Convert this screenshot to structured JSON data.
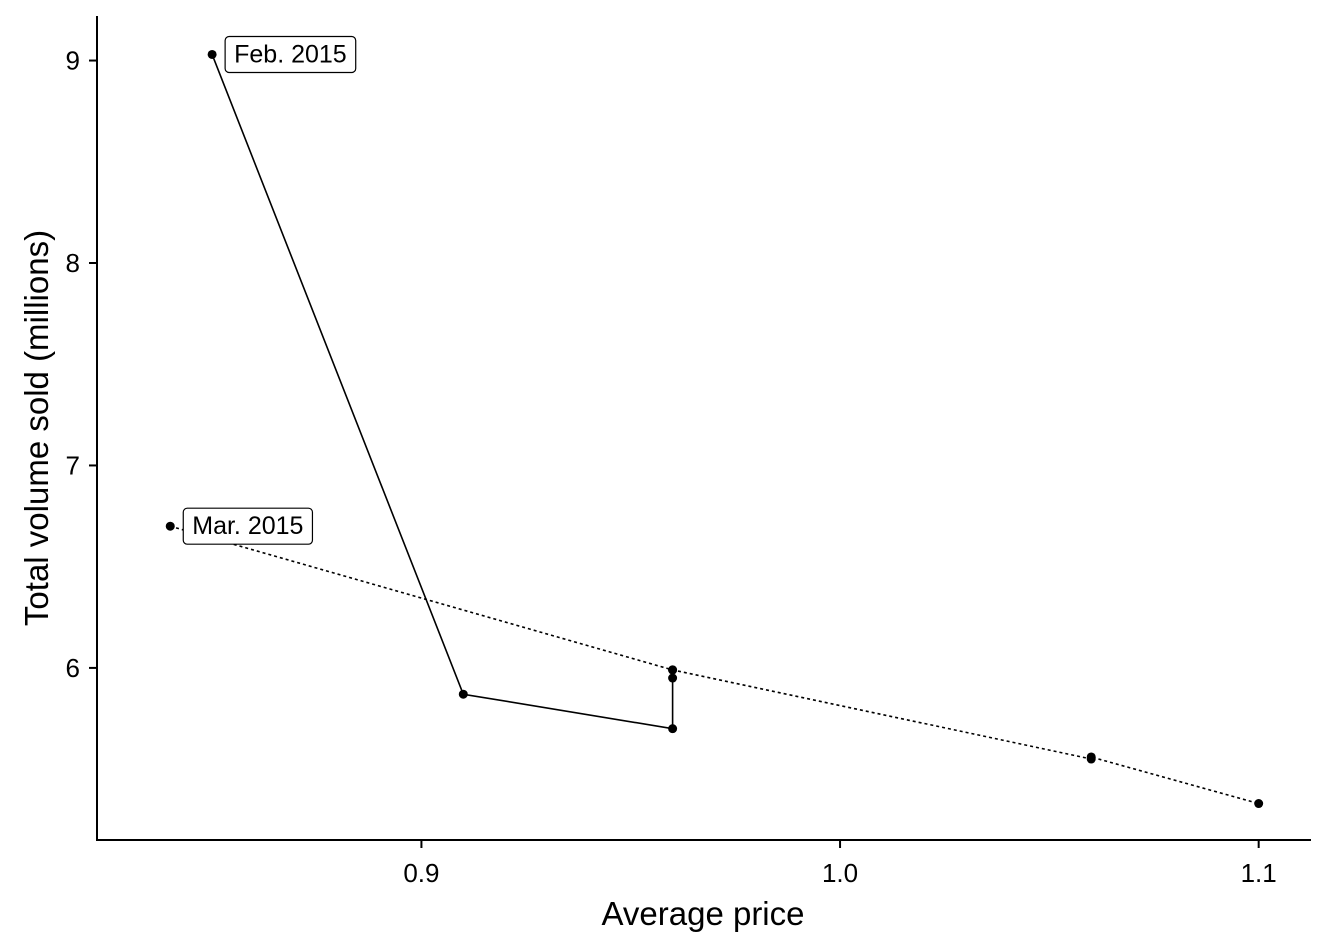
{
  "chart_data": {
    "type": "line",
    "xlabel": "Average price",
    "ylabel": "Total volume sold (millions)",
    "xlim": [
      0.8225,
      1.1125
    ],
    "ylim": [
      5.15,
      9.22
    ],
    "x_ticks": [
      0.9,
      1.0,
      1.1
    ],
    "x_tick_labels": [
      "0.9",
      "1.0",
      "1.1"
    ],
    "y_ticks": [
      6,
      7,
      8,
      9
    ],
    "y_tick_labels": [
      "6",
      "7",
      "8",
      "9"
    ],
    "grid": false,
    "legend": "none",
    "series": [
      {
        "line_style": "solid",
        "points": [
          {
            "x": 0.85,
            "y": 9.03
          },
          {
            "x": 0.91,
            "y": 5.87
          },
          {
            "x": 0.96,
            "y": 5.7
          },
          {
            "x": 0.96,
            "y": 5.95
          },
          {
            "x": 0.96,
            "y": 5.99
          }
        ]
      },
      {
        "line_style": "dotted",
        "points": [
          {
            "x": 0.84,
            "y": 6.7
          },
          {
            "x": 0.96,
            "y": 5.99
          },
          {
            "x": 1.06,
            "y": 5.55
          },
          {
            "x": 1.06,
            "y": 5.56
          },
          {
            "x": 1.1,
            "y": 5.33
          }
        ]
      }
    ],
    "annotations": [
      {
        "text": "Feb. 2015",
        "x": 0.85,
        "y": 9.03
      },
      {
        "text": "Mar. 2015",
        "x": 0.84,
        "y": 6.7
      }
    ]
  }
}
